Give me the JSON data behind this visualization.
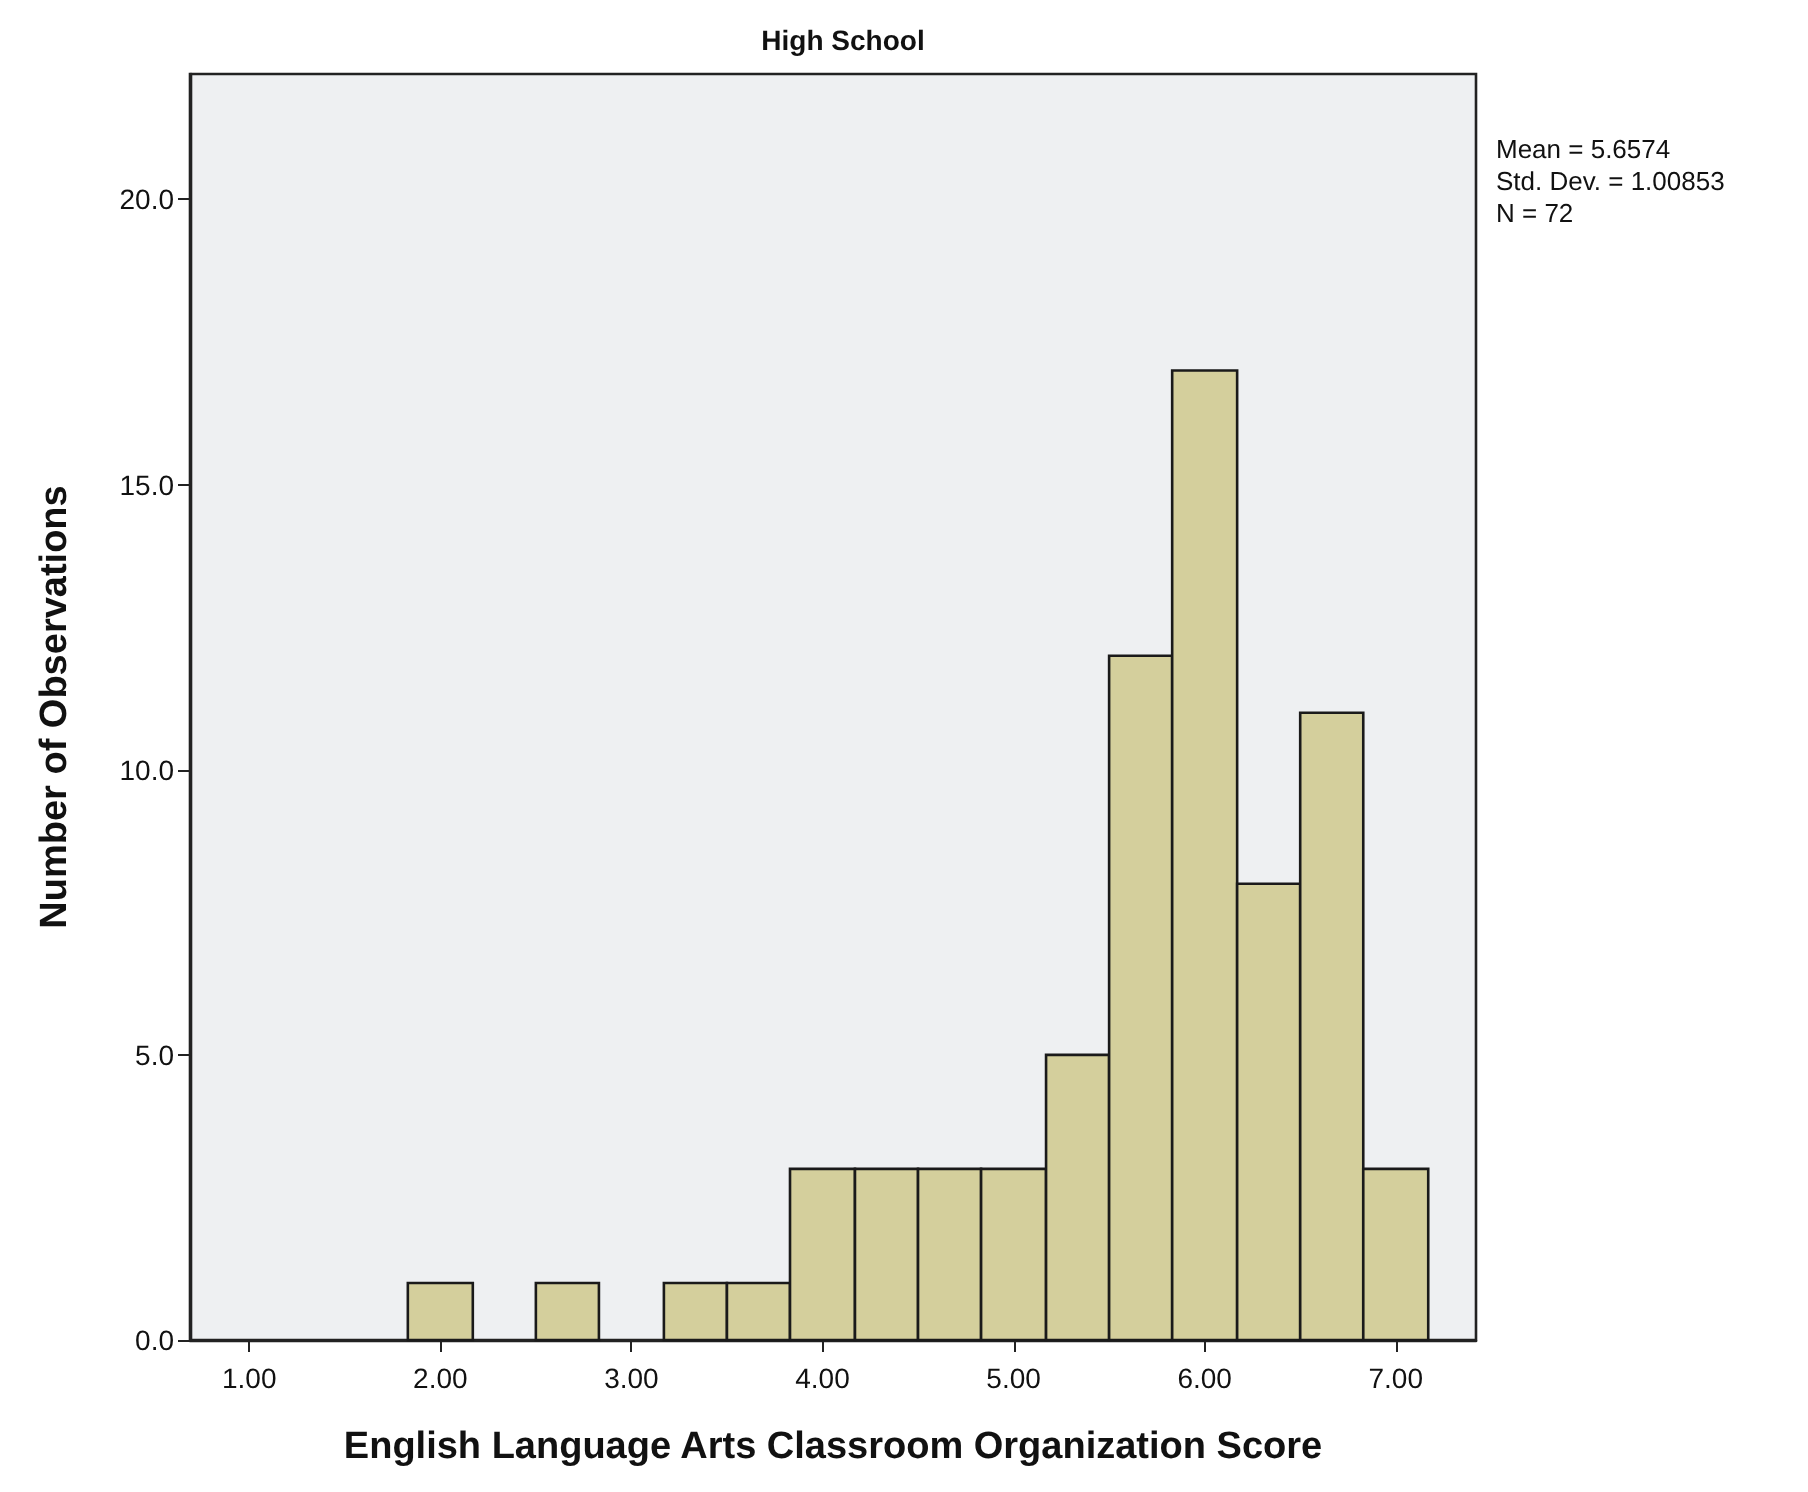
{
  "chart_data": {
    "type": "histogram",
    "title": "High School",
    "xlabel": "English Language Arts Classroom Organization Score",
    "ylabel": "Number of Observations",
    "bins": [
      1.83,
      2.17,
      2.5,
      2.83,
      3.17,
      3.5,
      3.83,
      4.17,
      4.5,
      4.83,
      5.17,
      5.5,
      5.83,
      6.17,
      6.5,
      6.83,
      7.17
    ],
    "values": [
      1,
      0,
      1,
      0,
      1,
      1,
      3,
      3,
      3,
      3,
      5,
      12,
      17,
      8,
      11,
      3
    ],
    "color": "#d4cf9c",
    "xlim": [
      0.69,
      7.42
    ],
    "xticks": [
      {
        "value": 1,
        "label": "1.00"
      },
      {
        "value": 2,
        "label": "2.00"
      },
      {
        "value": 3,
        "label": "3.00"
      },
      {
        "value": 4,
        "label": "4.00"
      },
      {
        "value": 5,
        "label": "5.00"
      },
      {
        "value": 6,
        "label": "6.00"
      },
      {
        "value": 7,
        "label": "7.00"
      }
    ],
    "ylim": [
      0,
      22.2
    ],
    "yticks": [
      {
        "value": 0,
        "label": "0.0"
      },
      {
        "value": 5,
        "label": "5.0"
      },
      {
        "value": 10,
        "label": "10.0"
      },
      {
        "value": 15,
        "label": "15.0"
      },
      {
        "value": 20,
        "label": "20.0"
      }
    ],
    "annotations": [
      "Mean = 5.6574",
      "Std. Dev. = 1.00853",
      "N = 72"
    ],
    "grid": false
  }
}
